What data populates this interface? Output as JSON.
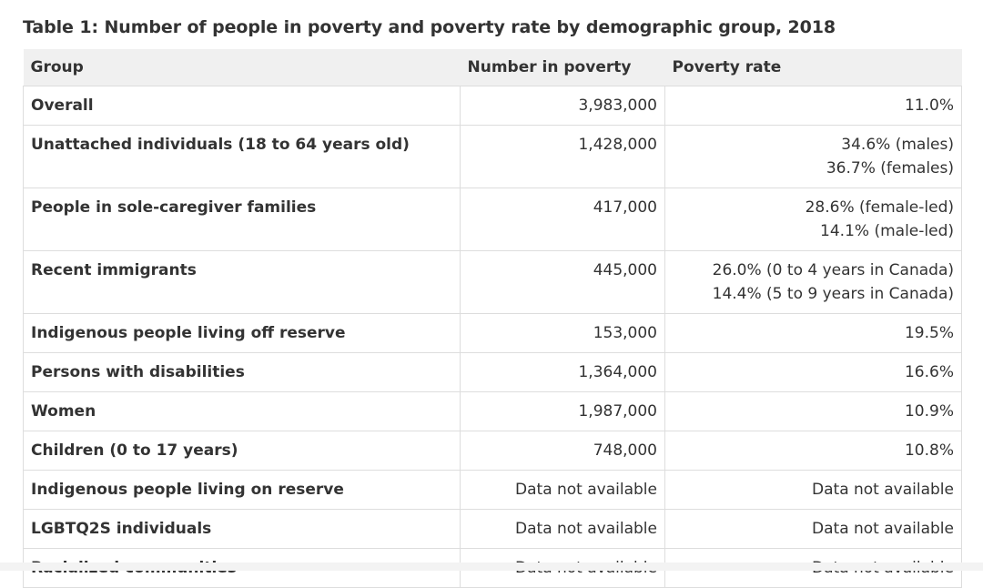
{
  "caption": "Table 1: Number of people in poverty and poverty rate by demographic group, 2018",
  "table": {
    "headers": [
      "Group",
      "Number in poverty",
      "Poverty rate"
    ],
    "rows": [
      {
        "group": "Overall",
        "number": "3,983,000",
        "rate": [
          "11.0%"
        ]
      },
      {
        "group": "Unattached individuals (18 to 64 years old)",
        "number": "1,428,000",
        "rate": [
          "34.6% (males)",
          "36.7% (females)"
        ]
      },
      {
        "group": "People in sole-caregiver families",
        "number": "417,000",
        "rate": [
          "28.6% (female-led)",
          "14.1% (male-led)"
        ]
      },
      {
        "group": "Recent immigrants",
        "number": "445,000",
        "rate": [
          "26.0% (0 to 4 years in Canada)",
          "14.4% (5 to 9 years in Canada)"
        ]
      },
      {
        "group": "Indigenous people living off reserve",
        "number": "153,000",
        "rate": [
          "19.5%"
        ]
      },
      {
        "group": "Persons with disabilities",
        "number": "1,364,000",
        "rate": [
          "16.6%"
        ]
      },
      {
        "group": "Women",
        "number": "1,987,000",
        "rate": [
          "10.9%"
        ]
      },
      {
        "group": "Children (0 to 17 years)",
        "number": "748,000",
        "rate": [
          "10.8%"
        ]
      },
      {
        "group": "Indigenous people living on reserve",
        "number": "Data not available",
        "rate": [
          "Data not available"
        ]
      },
      {
        "group": "LGBTQ2S individuals",
        "number": "Data not available",
        "rate": [
          "Data not available"
        ]
      },
      {
        "group": "Racialized communities",
        "number": "Data not available",
        "rate": [
          "Data not available"
        ]
      }
    ]
  }
}
